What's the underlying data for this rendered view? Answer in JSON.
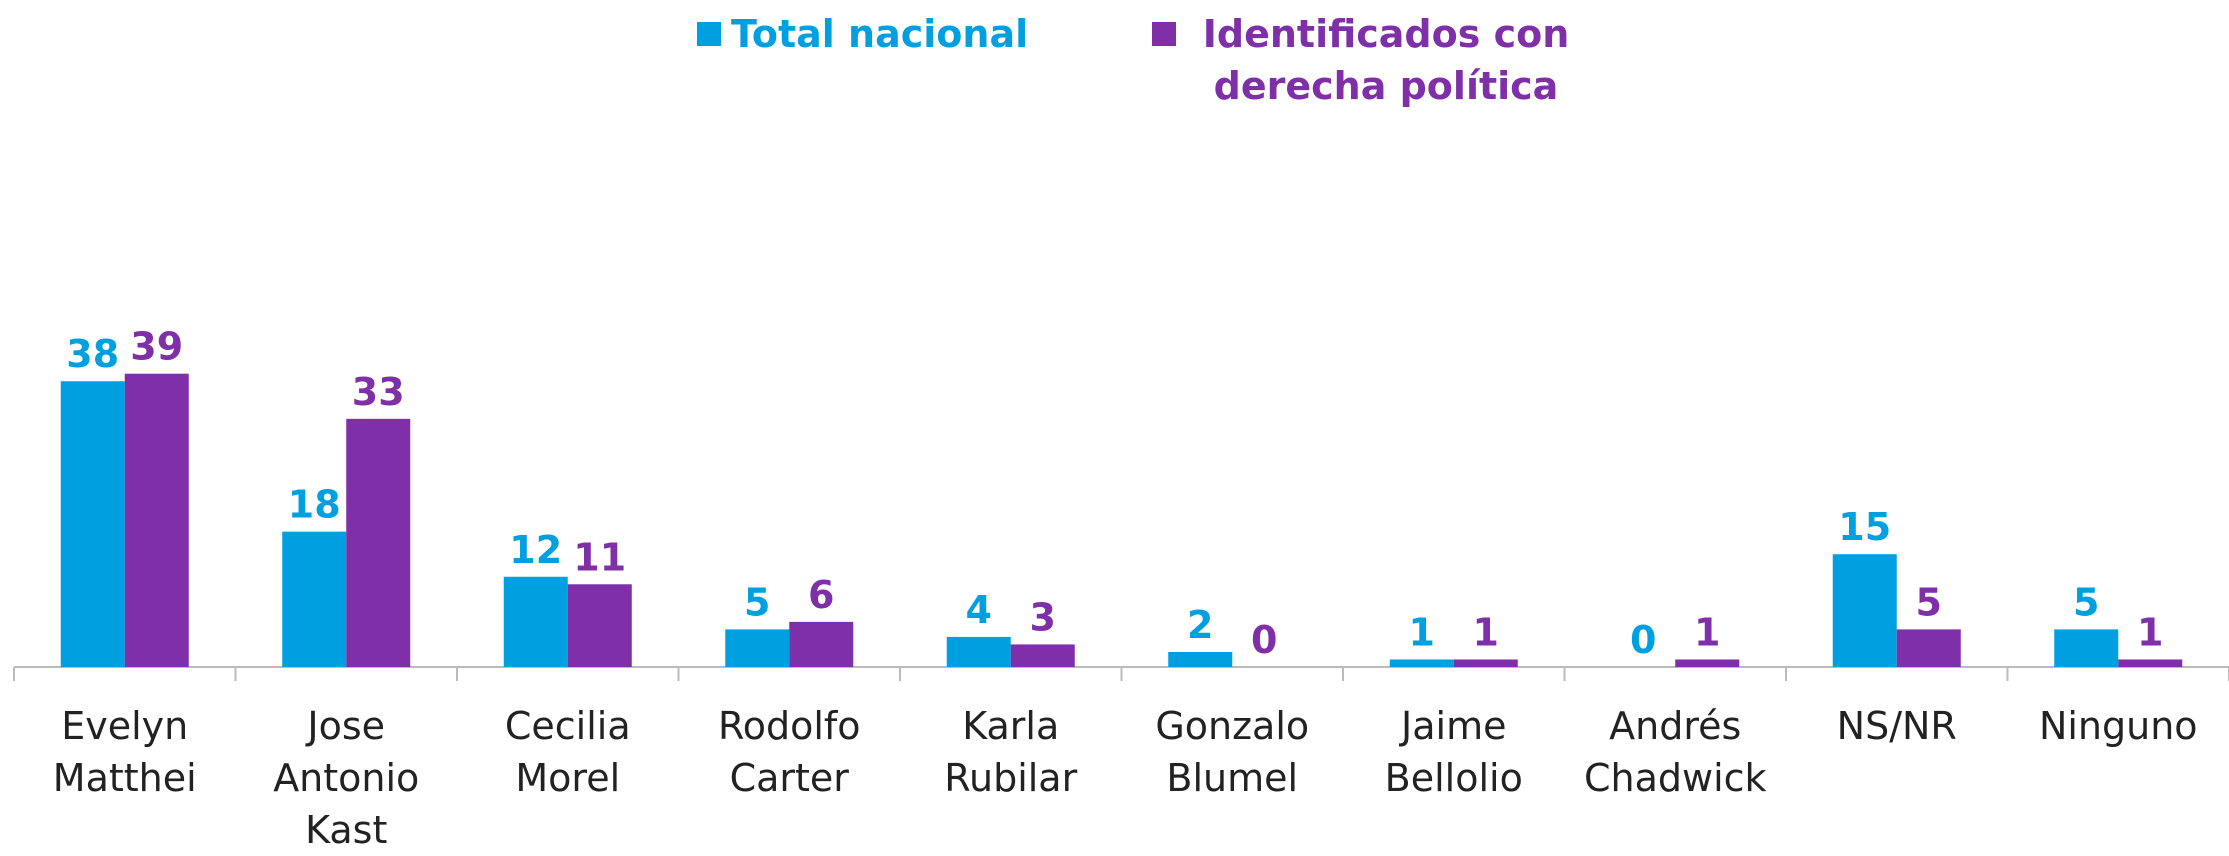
{
  "chart_data": {
    "type": "bar",
    "categories": [
      "Evelyn Matthei",
      "Jose Antonio Kast",
      "Cecilia Morel",
      "Rodolfo Carter",
      "Karla Rubilar",
      "Gonzalo Blumel",
      "Jaime Bellolio",
      "Andrés Chadwick",
      "NS/NR",
      "Ninguno"
    ],
    "series": [
      {
        "name": "Total nacional",
        "color": "#00a0e0",
        "values": [
          38,
          18,
          12,
          5,
          4,
          2,
          1,
          0,
          15,
          5
        ]
      },
      {
        "name": "Identificados con derecha política",
        "color": "#7f2fa8",
        "values": [
          39,
          33,
          11,
          6,
          3,
          0,
          1,
          1,
          5,
          1
        ]
      }
    ],
    "legend": "top"
  }
}
